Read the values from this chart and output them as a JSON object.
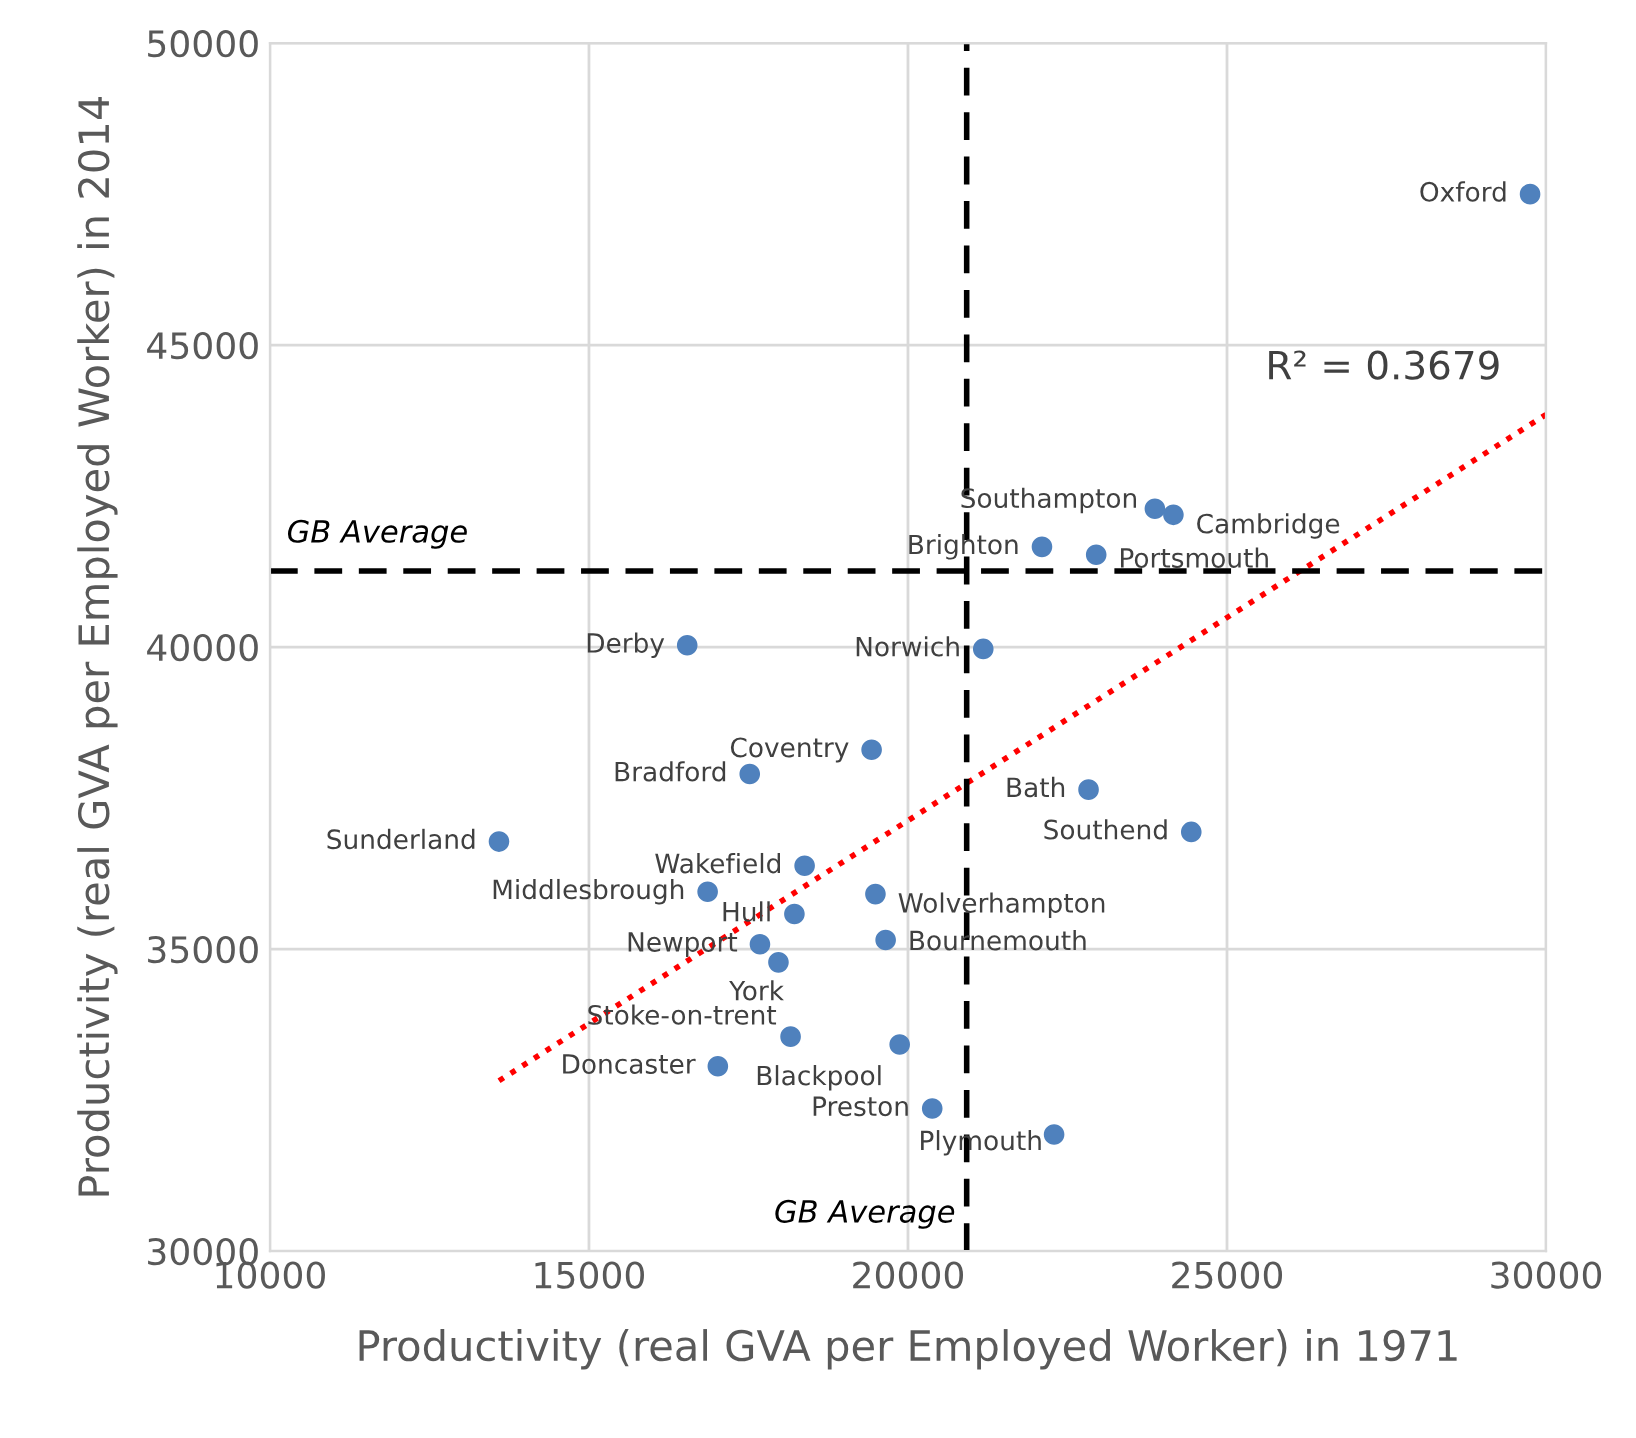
{
  "chart_data": {
    "type": "scatter",
    "xlabel": "Productivity (real GVA per Employed Worker) in 1971",
    "ylabel": "Productivity (real GVA per Employed Worker) in 2014",
    "xlim": [
      10000,
      30000
    ],
    "xticks": [
      10000,
      15000,
      20000,
      25000,
      30000
    ],
    "ylim": [
      30000,
      50000
    ],
    "yticks": [
      30000,
      35000,
      40000,
      45000,
      50000
    ],
    "grid": true,
    "series": [
      {
        "marker": "circle",
        "color": "#4f81bd",
        "x": [
          29750,
          23870,
          24160,
          22100,
          22950,
          21180,
          16540,
          19430,
          17520,
          22830,
          24440,
          13590,
          18380,
          16860,
          19490,
          18220,
          17680,
          19650,
          17970,
          18160,
          19870,
          17020,
          20380,
          22290
        ],
        "values": [
          47500,
          42290,
          42190,
          41660,
          41530,
          39970,
          40030,
          38300,
          37900,
          37640,
          36940,
          36780,
          36380,
          35950,
          35910,
          35580,
          35080,
          35150,
          34780,
          33550,
          33420,
          33060,
          32360,
          31930
        ]
      },
      {
        "type": "line",
        "color": "#ff0000",
        "line_style": "dotted",
        "x": [
          13590,
          30000
        ],
        "values": [
          32820,
          43850
        ]
      }
    ],
    "ref_lines": [
      {
        "axis": "x",
        "value": 20920,
        "label": "GB Average",
        "color": "#000000",
        "line_style": "dashed"
      },
      {
        "axis": "y",
        "value": 41260,
        "label": "GB Average",
        "color": "#000000",
        "line_style": "dashed"
      }
    ],
    "annotations": [
      {
        "text": "Oxford",
        "x": 29750,
        "y": 47500
      },
      {
        "text": "Southampton",
        "x": 23870,
        "y": 42290
      },
      {
        "text": "Cambridge",
        "x": 24160,
        "y": 42190
      },
      {
        "text": "Brighton",
        "x": 22100,
        "y": 41660
      },
      {
        "text": "Portsmouth",
        "x": 22950,
        "y": 41530
      },
      {
        "text": "Norwich",
        "x": 21180,
        "y": 39970
      },
      {
        "text": "Derby",
        "x": 16540,
        "y": 40030
      },
      {
        "text": "Coventry",
        "x": 19430,
        "y": 38300
      },
      {
        "text": "Bradford",
        "x": 17520,
        "y": 37900
      },
      {
        "text": "Bath",
        "x": 22830,
        "y": 37640
      },
      {
        "text": "Southend",
        "x": 24440,
        "y": 36940
      },
      {
        "text": "Sunderland",
        "x": 13590,
        "y": 36780
      },
      {
        "text": "Wakefield",
        "x": 18380,
        "y": 36380
      },
      {
        "text": "Middlesbrough",
        "x": 16860,
        "y": 35950
      },
      {
        "text": "Wolverhampton",
        "x": 19490,
        "y": 35910
      },
      {
        "text": "Hull",
        "x": 18220,
        "y": 35580
      },
      {
        "text": "Newport",
        "x": 17680,
        "y": 35080
      },
      {
        "text": "Bournemouth",
        "x": 19650,
        "y": 35150
      },
      {
        "text": "York",
        "x": 17970,
        "y": 34780
      },
      {
        "text": "Stoke-on-trent",
        "x": 18160,
        "y": 33550
      },
      {
        "text": "Blackpool",
        "x": 19870,
        "y": 33420
      },
      {
        "text": "Doncaster",
        "x": 17020,
        "y": 33060
      },
      {
        "text": "Preston",
        "x": 20380,
        "y": 32360
      },
      {
        "text": "Plymouth",
        "x": 22290,
        "y": 31930
      },
      "R² = 0.3679"
    ]
  }
}
